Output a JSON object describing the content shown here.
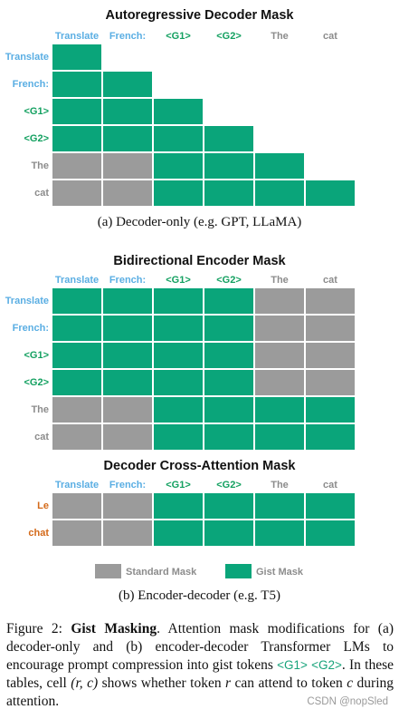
{
  "colors": {
    "gist": "#0aa57a",
    "standard": "#9b9b9b",
    "label_blue": "#5aaee3",
    "label_green": "#13a060",
    "label_gray": "#8c8c8c",
    "label_orange": "#d46a1a"
  },
  "tokens": [
    "Translate",
    "French:",
    "<G1>",
    "<G2>",
    "The",
    "cat"
  ],
  "token_colors": [
    "label_blue",
    "label_blue",
    "label_green",
    "label_green",
    "label_gray",
    "label_gray"
  ],
  "decoder_tokens": [
    "Le",
    "chat"
  ],
  "panel_a": {
    "title": "Autoregressive Decoder Mask",
    "caption": "(a) Decoder-only (e.g. GPT, LLaMA)",
    "matrix": [
      [
        "G",
        "",
        "",
        "",
        "",
        ""
      ],
      [
        "G",
        "G",
        "",
        "",
        "",
        ""
      ],
      [
        "G",
        "G",
        "G",
        "",
        "",
        ""
      ],
      [
        "G",
        "G",
        "G",
        "G",
        "",
        ""
      ],
      [
        "S",
        "S",
        "G",
        "G",
        "G",
        ""
      ],
      [
        "S",
        "S",
        "G",
        "G",
        "G",
        "G"
      ]
    ]
  },
  "panel_b": {
    "title": "Bidirectional Encoder Mask",
    "matrix": [
      [
        "G",
        "G",
        "G",
        "G",
        "S",
        "S"
      ],
      [
        "G",
        "G",
        "G",
        "G",
        "S",
        "S"
      ],
      [
        "G",
        "G",
        "G",
        "G",
        "S",
        "S"
      ],
      [
        "G",
        "G",
        "G",
        "G",
        "S",
        "S"
      ],
      [
        "S",
        "S",
        "G",
        "G",
        "G",
        "G"
      ],
      [
        "S",
        "S",
        "G",
        "G",
        "G",
        "G"
      ]
    ]
  },
  "panel_c": {
    "title": "Decoder Cross-Attention Mask",
    "matrix": [
      [
        "S",
        "S",
        "G",
        "G",
        "G",
        "G"
      ],
      [
        "S",
        "S",
        "G",
        "G",
        "G",
        "G"
      ]
    ]
  },
  "legend": {
    "standard_label": "Standard Mask",
    "gist_label": "Gist Mask"
  },
  "caption_b": "(b) Encoder-decoder (e.g. T5)",
  "figure_caption": {
    "prefix": "Figure 2: ",
    "bold": "Gist Masking",
    "part1": ". Attention mask modifications for (a) decoder-only and (b) encoder-decoder Transformer LMs to encourage prompt compression into gist tokens ",
    "tok1": "<G1>",
    "tok2": "<G2>",
    "part2": ". In these tables, cell ",
    "math1": "(r, c)",
    "part3": " shows whether token ",
    "math2": "r",
    "part4": " can attend to token ",
    "math3": "c",
    "part5": " during attention."
  },
  "watermark": "CSDN @nopSled"
}
